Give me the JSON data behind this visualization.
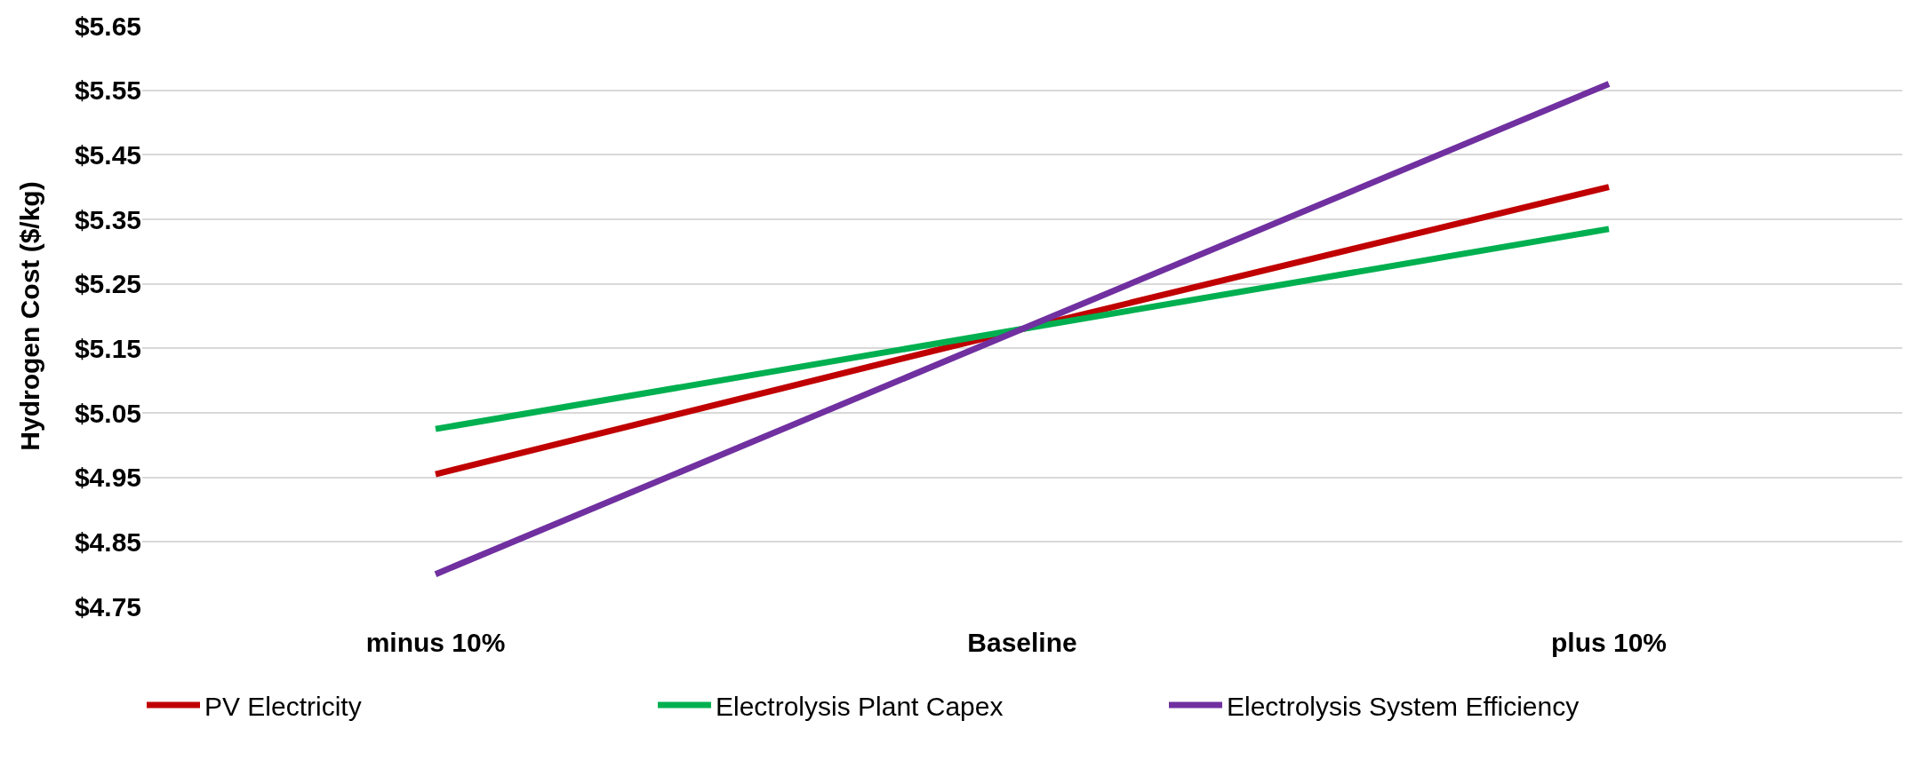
{
  "chart_data": {
    "type": "line",
    "ylabel": "Hydrogen Cost ($/kg)",
    "categories": [
      "minus 10%",
      "Baseline",
      "plus 10%"
    ],
    "series": [
      {
        "name": "PV Electricity",
        "color": "#c00000",
        "values": [
          4.955,
          5.18,
          5.4
        ]
      },
      {
        "name": "Electrolysis Plant Capex",
        "color": "#00b050",
        "values": [
          5.025,
          5.18,
          5.335
        ]
      },
      {
        "name": "Electrolysis System Efficiency",
        "color": "#7030a0",
        "values": [
          4.8,
          5.18,
          5.56
        ]
      }
    ],
    "ylim": [
      4.75,
      5.65
    ],
    "yticks": [
      {
        "value": 4.75,
        "label": "$4.75"
      },
      {
        "value": 4.85,
        "label": "$4.85"
      },
      {
        "value": 4.95,
        "label": "$4.95"
      },
      {
        "value": 5.05,
        "label": "$5.05"
      },
      {
        "value": 5.15,
        "label": "$5.15"
      },
      {
        "value": 5.25,
        "label": "$5.25"
      },
      {
        "value": 5.35,
        "label": "$5.35"
      },
      {
        "value": 5.45,
        "label": "$5.45"
      },
      {
        "value": 5.55,
        "label": "$5.55"
      },
      {
        "value": 5.65,
        "label": "$5.65"
      }
    ],
    "grid": "y",
    "legend": "bottom",
    "marker": "none",
    "line_style": "solid"
  }
}
